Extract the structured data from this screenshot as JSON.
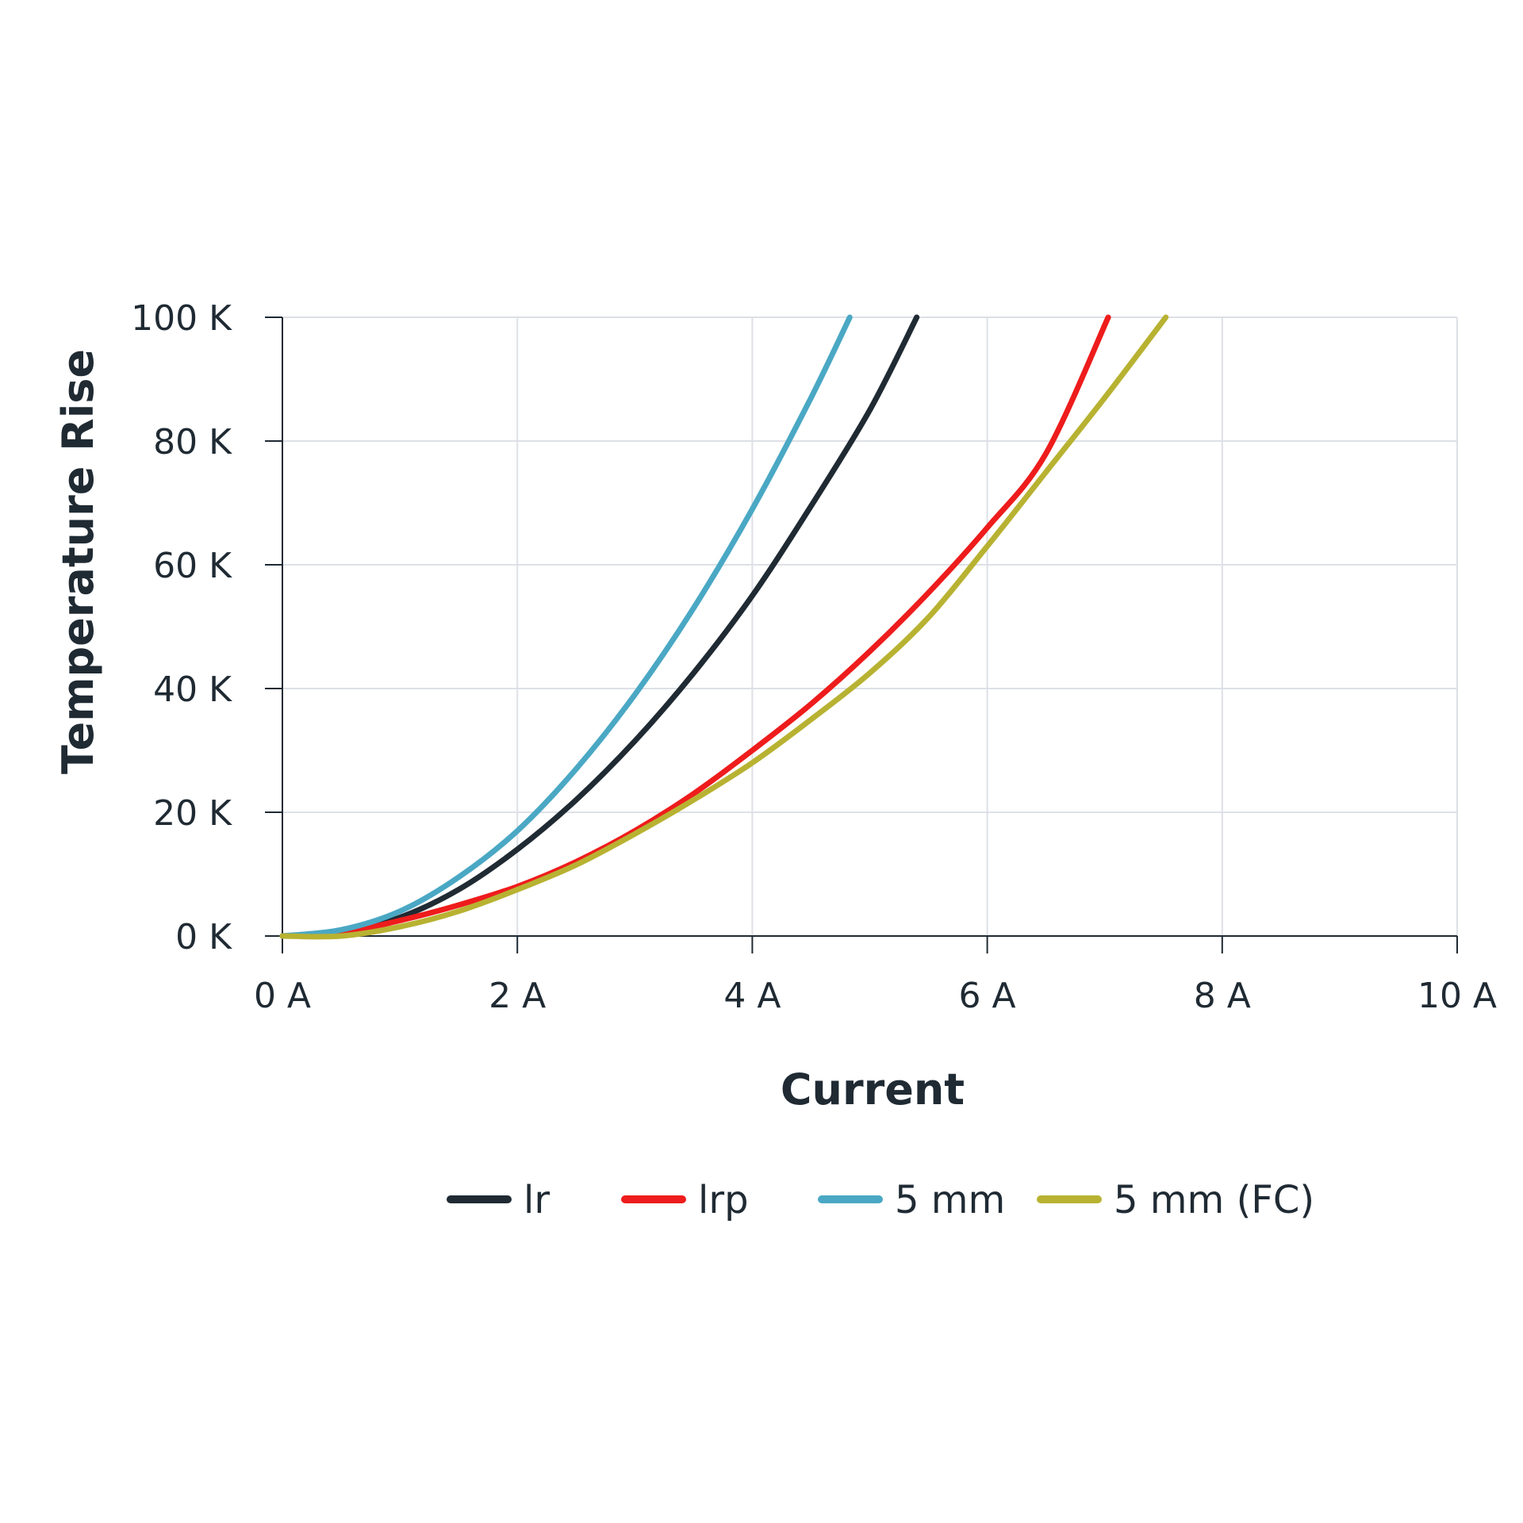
{
  "chart_data": {
    "type": "line",
    "xlabel": "Current",
    "ylabel": "Temperature Rise",
    "xlim": [
      0,
      10
    ],
    "ylim": [
      0,
      100
    ],
    "x_ticks": [
      0,
      2,
      4,
      6,
      8,
      10
    ],
    "y_ticks": [
      0,
      20,
      40,
      60,
      80,
      100
    ],
    "x_tick_labels": [
      "0 A",
      "2 A",
      "4 A",
      "6 A",
      "8 A",
      "10 A"
    ],
    "y_tick_labels": [
      "0 K",
      "20 K",
      "40 K",
      "60 K",
      "80 K",
      "100 K"
    ],
    "grid": true,
    "legend_position": "bottom",
    "series": [
      {
        "name": "lr",
        "color": "#1f2a33",
        "x": [
          0,
          0.5,
          1.0,
          1.5,
          2.0,
          2.5,
          3.0,
          3.5,
          4.0,
          4.5,
          5.0,
          5.4
        ],
        "y": [
          0,
          0.5,
          3.0,
          7.5,
          14,
          22,
          31.5,
          42.5,
          55,
          69.5,
          85,
          100
        ]
      },
      {
        "name": "lrp",
        "color": "#ee1c1c",
        "x": [
          0,
          0.5,
          1.0,
          1.5,
          2.0,
          2.5,
          3.0,
          3.5,
          4.0,
          4.5,
          5.0,
          5.5,
          6.0,
          6.5,
          7.03
        ],
        "y": [
          0,
          0.5,
          2.5,
          5.0,
          8.0,
          12,
          17,
          23,
          30,
          37.5,
          46,
          55.5,
          66,
          78,
          100
        ]
      },
      {
        "name": "5 mm",
        "color": "#4aa8c4",
        "x": [
          0,
          0.5,
          1.0,
          1.5,
          2.0,
          2.5,
          3.0,
          3.5,
          4.0,
          4.5,
          4.83
        ],
        "y": [
          0,
          1.0,
          4.0,
          9.5,
          17,
          27,
          39,
          53,
          69,
          87,
          100
        ]
      },
      {
        "name": "5 mm (FC)",
        "color": "#b8b232",
        "x": [
          0,
          0.5,
          1.0,
          1.5,
          2.0,
          2.5,
          3.0,
          3.5,
          4.0,
          4.5,
          5.0,
          5.5,
          6.0,
          6.5,
          7.0,
          7.52
        ],
        "y": [
          0,
          0,
          1.5,
          4.0,
          7.5,
          11.5,
          16.5,
          22,
          28,
          35,
          42.5,
          51.5,
          63,
          75,
          87,
          100
        ]
      }
    ]
  }
}
